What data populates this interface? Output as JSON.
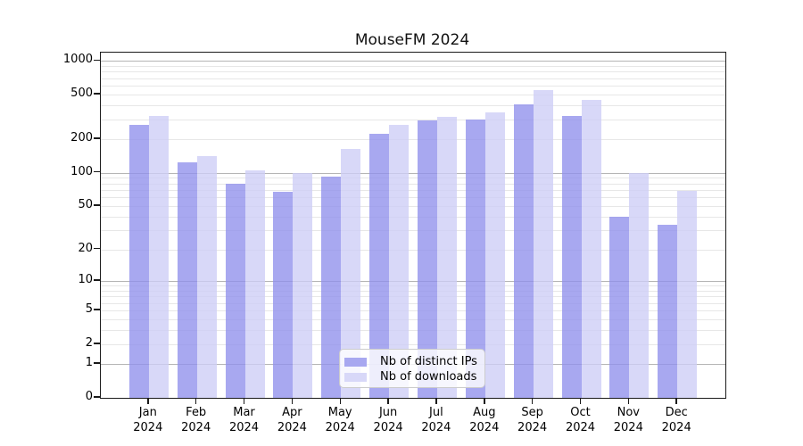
{
  "title": "MouseFM 2024",
  "chart_data": {
    "type": "bar",
    "title": "MouseFM 2024",
    "xlabel": "",
    "ylabel": "",
    "categories": [
      "Jan 2024",
      "Feb 2024",
      "Mar 2024",
      "Apr 2024",
      "May 2024",
      "Jun 2024",
      "Jul 2024",
      "Aug 2024",
      "Sep 2024",
      "Oct 2024",
      "Nov 2024",
      "Dec 2024"
    ],
    "series": [
      {
        "name": "Nb of distinct IPs",
        "color": "#a8a8f0",
        "fill": "rgba(143,143,236,0.78)",
        "values": [
          270,
          125,
          80,
          67,
          93,
          225,
          292,
          302,
          406,
          324,
          40,
          34
        ]
      },
      {
        "name": "Nb of downloads",
        "color": "#d8d8f8",
        "fill": "rgba(205,205,246,0.78)",
        "values": [
          320,
          140,
          106,
          100,
          165,
          270,
          318,
          345,
          548,
          448,
          100,
          69
        ]
      }
    ],
    "y_scale": "symlog (pixel position proportional to ln(1+v))",
    "y_ticks": [
      0,
      1,
      2,
      5,
      10,
      20,
      50,
      100,
      200,
      500,
      1000
    ],
    "ylim": [
      0,
      1165
    ],
    "grid": {
      "orientation": "horizontal",
      "major_values": [
        1,
        10,
        100,
        1000
      ],
      "minor_multipliers": [
        2,
        3,
        4,
        5,
        6,
        7,
        8,
        9
      ],
      "major_color": "#b5b5b5",
      "minor_color": "#e7e7e7"
    },
    "legend_position": "lower center"
  }
}
